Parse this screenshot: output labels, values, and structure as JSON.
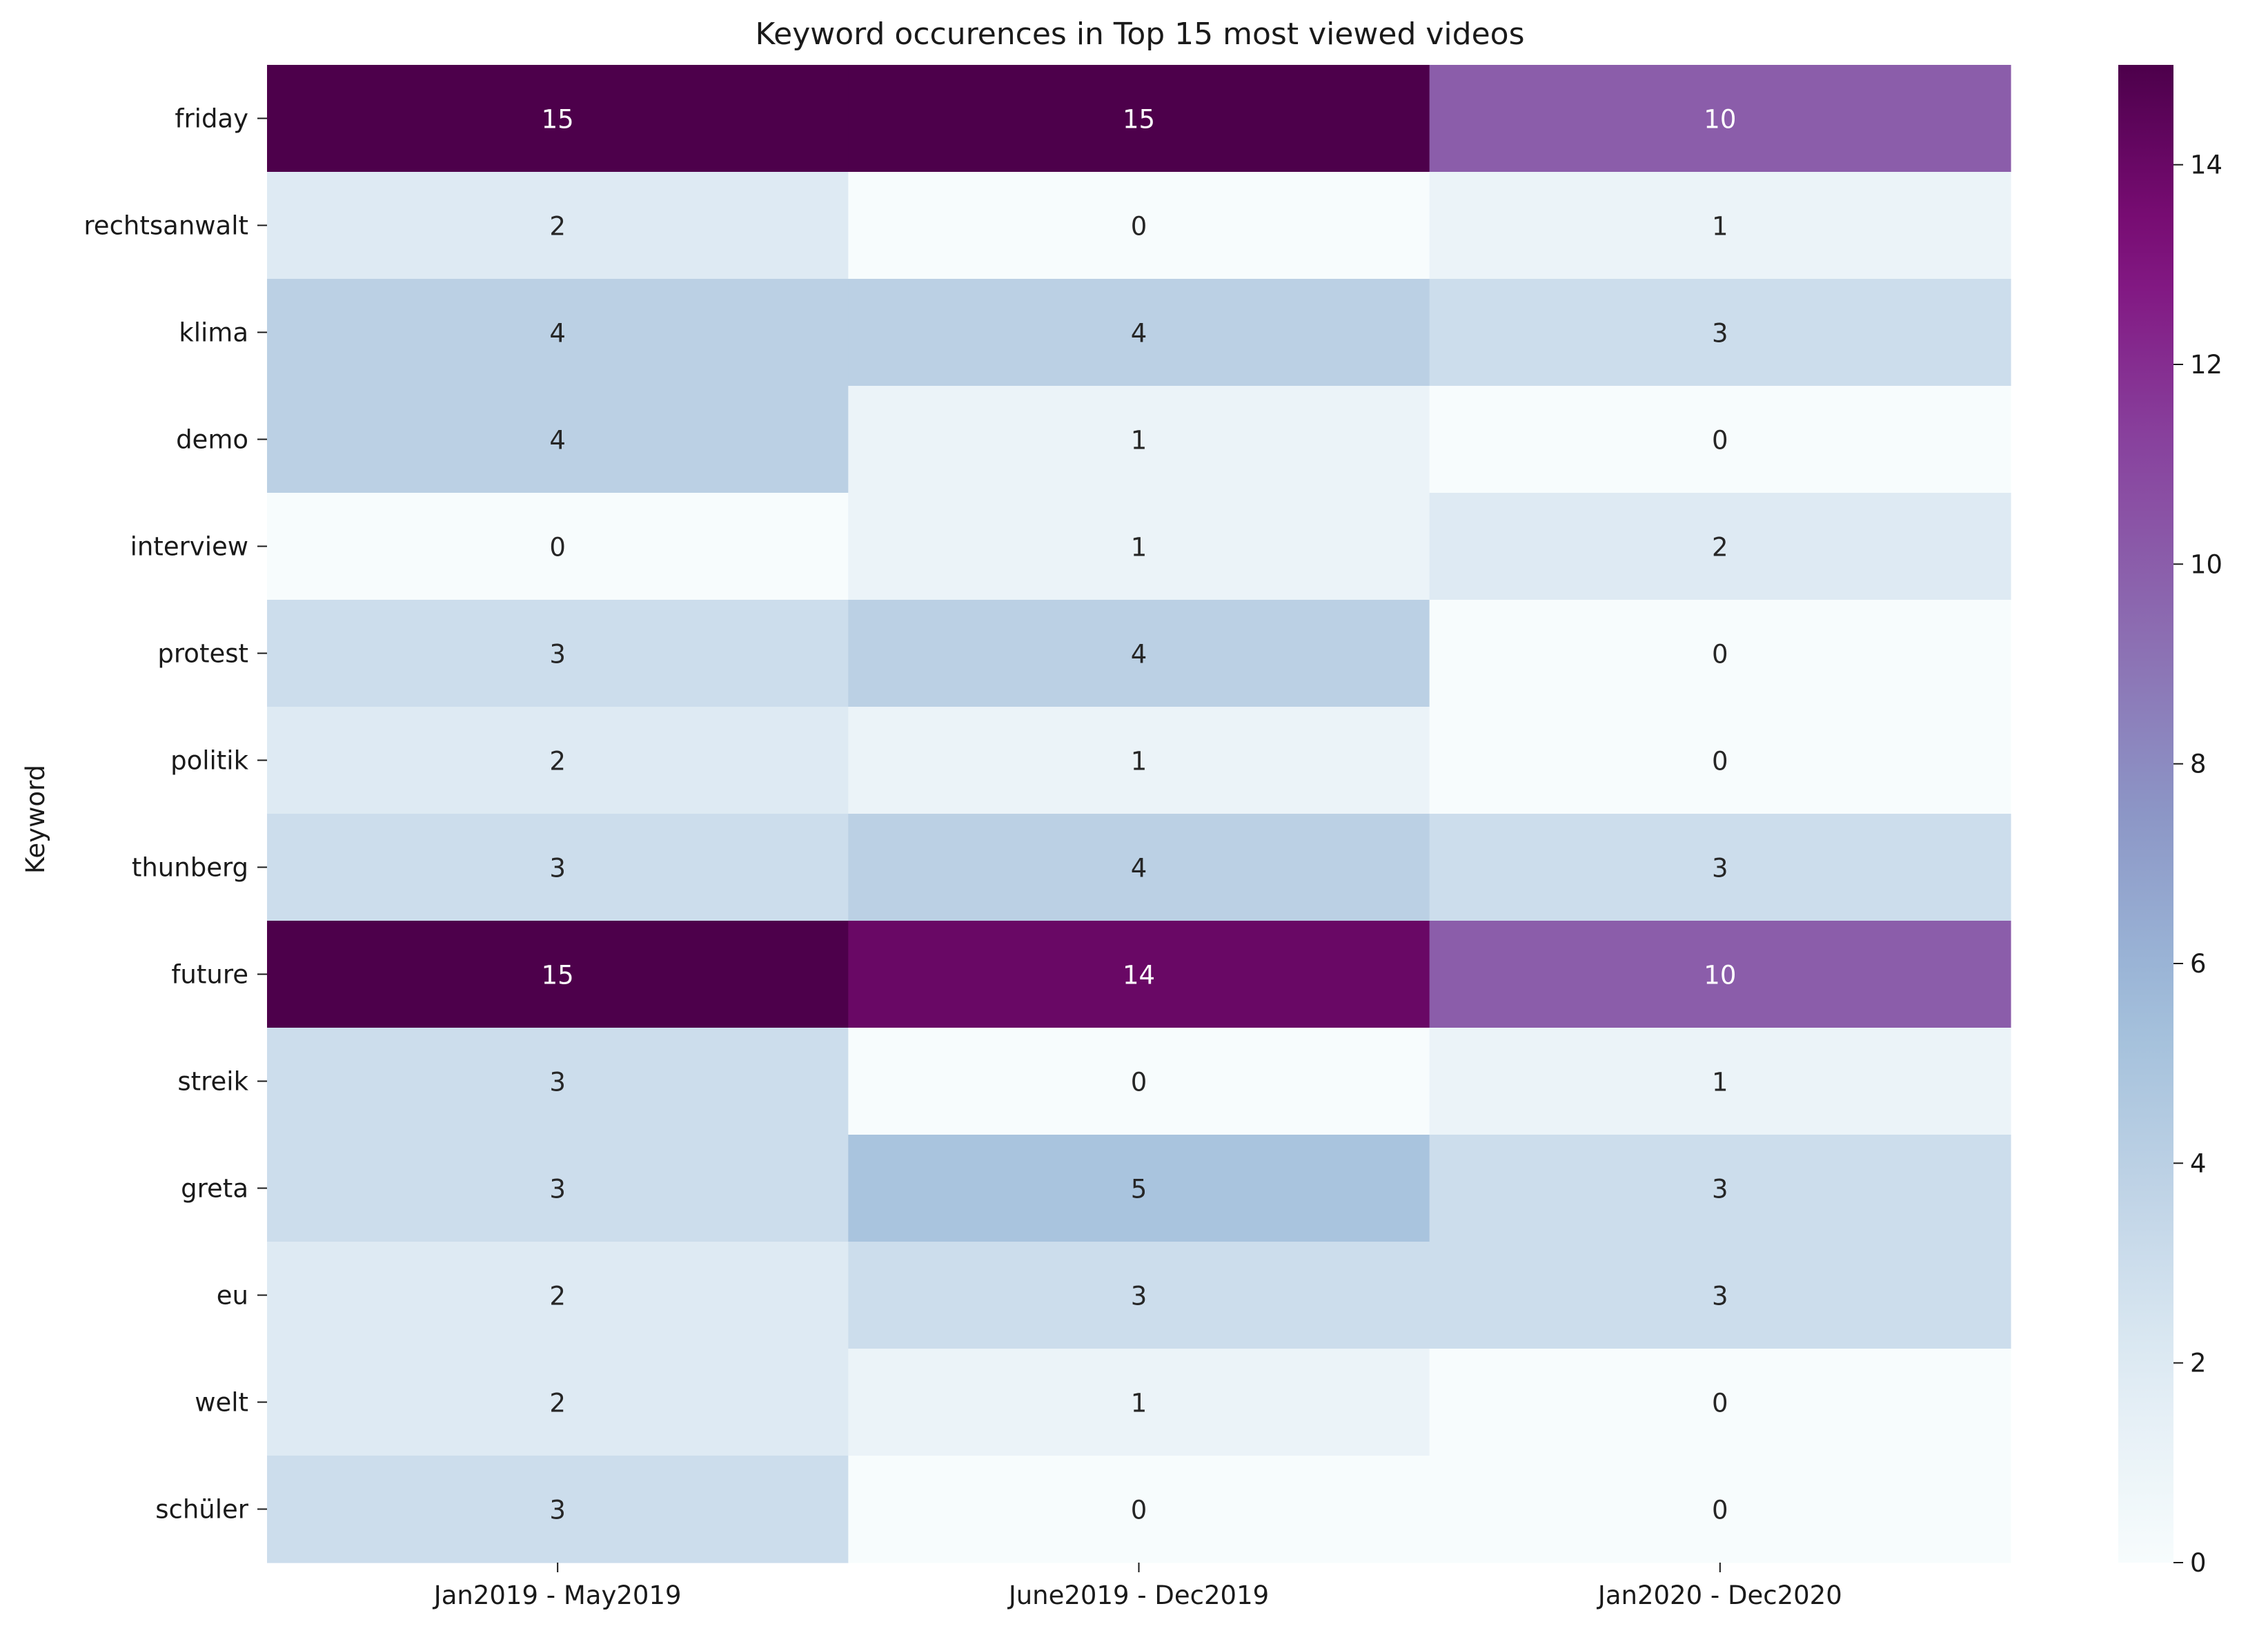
{
  "chart_data": {
    "type": "heatmap",
    "title": "Keyword occurences in Top 15 most viewed videos",
    "xlabel": "",
    "ylabel": "Keyword",
    "columns": [
      "Jan2019 - May2019",
      "June2019 - Dec2019",
      "Jan2020 - Dec2020"
    ],
    "rows": [
      "friday",
      "rechtsanwalt",
      "klima",
      "demo",
      "interview",
      "protest",
      "politik",
      "thunberg",
      "future",
      "streik",
      "greta",
      "eu",
      "welt",
      "schüler"
    ],
    "values": [
      [
        15,
        15,
        10
      ],
      [
        2,
        0,
        1
      ],
      [
        4,
        4,
        3
      ],
      [
        4,
        1,
        0
      ],
      [
        0,
        1,
        2
      ],
      [
        3,
        4,
        0
      ],
      [
        2,
        1,
        0
      ],
      [
        3,
        4,
        3
      ],
      [
        15,
        14,
        10
      ],
      [
        3,
        0,
        1
      ],
      [
        3,
        5,
        3
      ],
      [
        2,
        3,
        3
      ],
      [
        2,
        1,
        0
      ],
      [
        3,
        0,
        0
      ]
    ],
    "colormap": "BuPu",
    "vmin": 0,
    "vmax": 15,
    "colorbar_ticks": [
      0,
      2,
      4,
      6,
      8,
      10,
      12,
      14
    ],
    "annotations": true,
    "grid": false
  }
}
